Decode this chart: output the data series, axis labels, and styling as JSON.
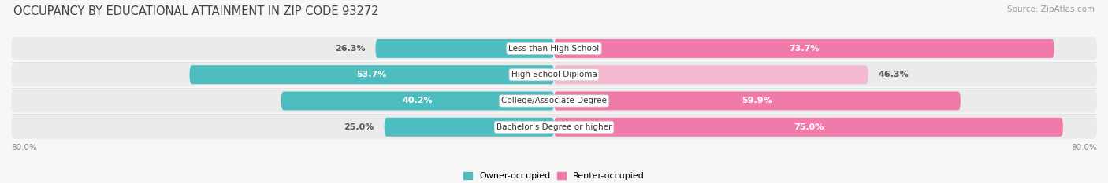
{
  "title": "OCCUPANCY BY EDUCATIONAL ATTAINMENT IN ZIP CODE 93272",
  "source": "Source: ZipAtlas.com",
  "categories": [
    "Less than High School",
    "High School Diploma",
    "College/Associate Degree",
    "Bachelor's Degree or higher"
  ],
  "owner_values": [
    26.3,
    53.7,
    40.2,
    25.0
  ],
  "renter_values": [
    73.7,
    46.3,
    59.9,
    75.0
  ],
  "owner_color": "#4dbdc0",
  "renter_color": "#f07aaa",
  "renter_color_light": "#f5b8d0",
  "bar_bg_color": "#ebebeb",
  "bar_bg_shadow": "#d8d8d8",
  "owner_label": "Owner-occupied",
  "renter_label": "Renter-occupied",
  "xlim_left": -80.0,
  "xlim_right": 80.0,
  "axis_label_left": "80.0%",
  "axis_label_right": "80.0%",
  "title_fontsize": 10.5,
  "source_fontsize": 7.5,
  "label_fontsize": 8,
  "cat_fontsize": 7.5,
  "bar_height": 0.72,
  "background_color": "#f7f7f7",
  "owner_text_threshold": 40,
  "renter_text_threshold": 55
}
